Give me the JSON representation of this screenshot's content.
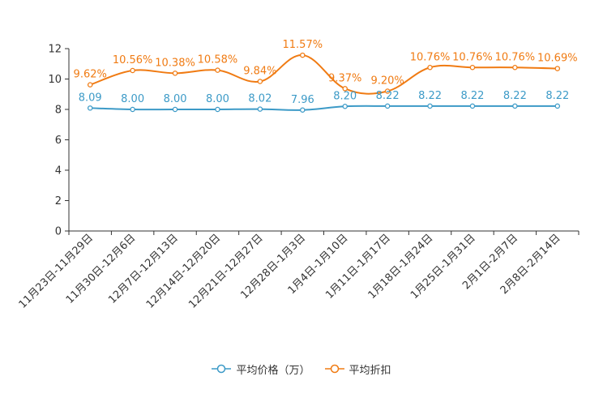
{
  "chart_data": {
    "type": "line",
    "categories": [
      "11月23日-11月29日",
      "11月30日-12月6日",
      "12月7日-12月13日",
      "12月14日-12月20日",
      "12月21日-12月27日",
      "12月28日-1月3日",
      "1月4日-1月10日",
      "1月11日-1月17日",
      "1月18日-1月24日",
      "1月25日-1月31日",
      "2月1日-2月7日",
      "2月8日-2月14日"
    ],
    "ylim": [
      0,
      12
    ],
    "yticks": [
      0,
      2,
      4,
      6,
      8,
      10,
      12
    ],
    "series": [
      {
        "name": "平均价格（万）",
        "color": "#3c9ac7",
        "values": [
          8.09,
          8.0,
          8.0,
          8.0,
          8.02,
          7.96,
          8.2,
          8.22,
          8.22,
          8.22,
          8.22,
          8.22
        ],
        "labels": [
          "8.09",
          "8.00",
          "8.00",
          "8.00",
          "8.02",
          "7.96",
          "8.20",
          "8.22",
          "8.22",
          "8.22",
          "8.22",
          "8.22"
        ]
      },
      {
        "name": "平均折扣",
        "color": "#f07b13",
        "values": [
          9.62,
          10.56,
          10.38,
          10.58,
          9.84,
          11.57,
          9.37,
          9.2,
          10.76,
          10.76,
          10.76,
          10.69
        ],
        "labels": [
          "9.62%",
          "10.56%",
          "10.38%",
          "10.58%",
          "9.84%",
          "11.57%",
          "9.37%",
          "9.20%",
          "10.76%",
          "10.76%",
          "10.76%",
          "10.69%"
        ]
      }
    ],
    "legend_position": "bottom-center"
  }
}
